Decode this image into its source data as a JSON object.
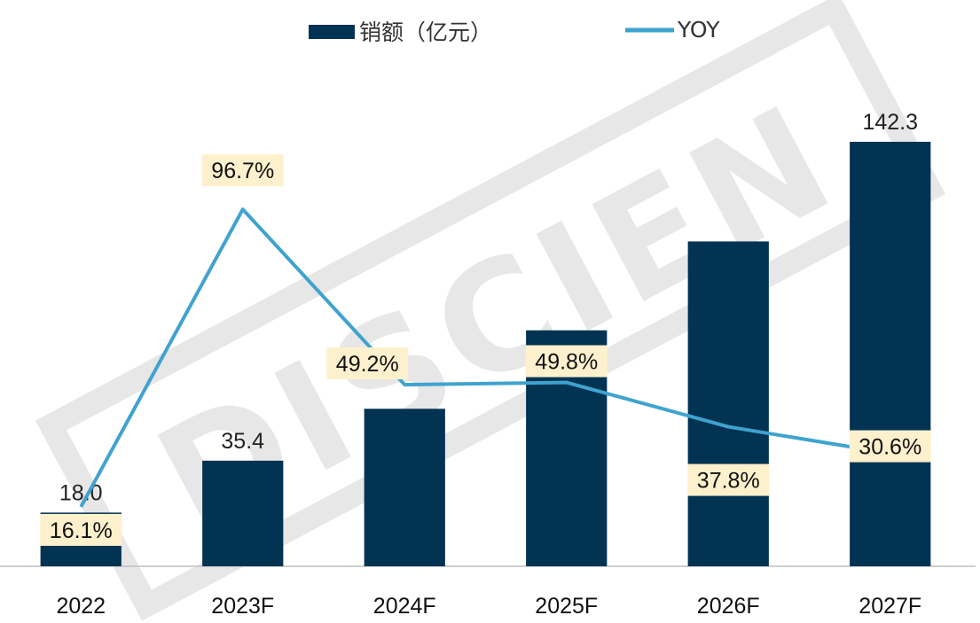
{
  "chart_data": {
    "type": "bar",
    "categories": [
      "2022",
      "2023F",
      "2024F",
      "2025F",
      "2026F",
      "2027F"
    ],
    "series": [
      {
        "name": "销额（亿元）",
        "type": "bar",
        "values": [
          18.0,
          35.4,
          52.8,
          79.1,
          108.9,
          142.3
        ],
        "data_labels": [
          "18.0",
          "35.4",
          "",
          "",
          "",
          "142.3"
        ],
        "color": "#033352"
      },
      {
        "name": "YOY",
        "type": "line",
        "values": [
          16.1,
          96.7,
          49.2,
          49.8,
          37.8,
          30.6
        ],
        "data_labels": [
          "16.1%",
          "96.7%",
          "49.2%",
          "49.8%",
          "37.8%",
          "30.6%"
        ],
        "color": "#3fa3cf"
      }
    ],
    "y_left_range": [
      0,
      150
    ],
    "y_right_range": [
      0,
      115
    ],
    "grid": false,
    "legend_position": "top",
    "label_box_color": "#fdf0cc",
    "watermark": "DISCIEN"
  }
}
